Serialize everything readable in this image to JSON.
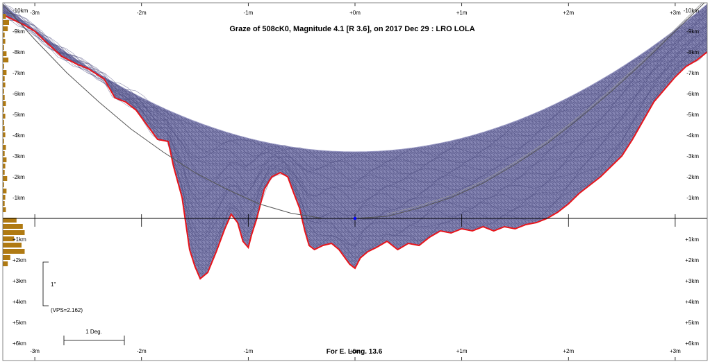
{
  "chart_data": {
    "type": "area",
    "title": "Graze of  508cK0,  Magnitude 4.1 [R 3.6],  on 2017 Dec 29  :  LRO LOLA",
    "footer": "For E. Long. 13.6",
    "x_ticks": [
      "-3m",
      "-2m",
      "-1m",
      "+0m",
      "+1m",
      "+2m",
      "+3m"
    ],
    "x_tick_values": [
      -3,
      -2,
      -1,
      0,
      1,
      2,
      3
    ],
    "xlim": [
      -3.3,
      3.3
    ],
    "ylim": [
      -10,
      6
    ],
    "y_ticks_left": [
      "-10km",
      "-9km",
      "-8km",
      "-7km",
      "-6km",
      "-5km",
      "-4km",
      "-3km",
      "-2km",
      "-1km",
      "+1km",
      "+2km",
      "+3km",
      "+4km",
      "+5km",
      "+6km"
    ],
    "y_ticks_right": [
      "-10km",
      "-9km",
      "-8km",
      "-7km",
      "-6km",
      "-5km",
      "-4km",
      "-3km",
      "-2km",
      "-1km",
      "+1km",
      "+2km",
      "+3km",
      "+4km",
      "+5km",
      "+6km"
    ],
    "y_tick_values": [
      -10,
      -9,
      -8,
      -7,
      -6,
      -5,
      -4,
      -3,
      -2,
      -1,
      1,
      2,
      3,
      4,
      5,
      6
    ],
    "scale_labels": {
      "arcsec": "1\"",
      "vps": "(VPS=2.162)",
      "degree": "1 Deg."
    },
    "limb_profile": {
      "x": [
        -3.3,
        -3.1,
        -3.0,
        -2.9,
        -2.75,
        -2.6,
        -2.5,
        -2.35,
        -2.25,
        -2.15,
        -2.05,
        -1.95,
        -1.85,
        -1.75,
        -1.7,
        -1.62,
        -1.55,
        -1.5,
        -1.45,
        -1.38,
        -1.3,
        -1.22,
        -1.16,
        -1.1,
        -1.05,
        -1.0,
        -0.97,
        -0.92,
        -0.85,
        -0.78,
        -0.7,
        -0.63,
        -0.58,
        -0.52,
        -0.47,
        -0.43,
        -0.38,
        -0.3,
        -0.22,
        -0.15,
        -0.05,
        0.0,
        0.05,
        0.12,
        0.2,
        0.3,
        0.4,
        0.5,
        0.6,
        0.7,
        0.8,
        0.9,
        1.0,
        1.1,
        1.2,
        1.3,
        1.4,
        1.5,
        1.6,
        1.7,
        1.8,
        1.9,
        2.0,
        2.1,
        2.2,
        2.3,
        2.4,
        2.5,
        2.6,
        2.7,
        2.8,
        2.9,
        3.0,
        3.1,
        3.2,
        3.3
      ],
      "y": [
        -9.8,
        -9.3,
        -9.0,
        -8.5,
        -7.8,
        -7.4,
        -7.2,
        -6.7,
        -5.8,
        -5.6,
        -5.2,
        -4.5,
        -3.8,
        -3.7,
        -2.5,
        -1.0,
        1.5,
        2.3,
        2.9,
        2.6,
        1.6,
        0.5,
        -0.2,
        0.2,
        1.1,
        1.4,
        0.8,
        0.0,
        -1.4,
        -2.0,
        -2.2,
        -2.0,
        -1.3,
        -0.5,
        0.6,
        1.3,
        1.5,
        1.3,
        1.2,
        1.5,
        2.2,
        2.4,
        1.9,
        1.6,
        1.4,
        1.1,
        1.5,
        1.2,
        1.3,
        0.9,
        0.6,
        0.7,
        0.5,
        0.6,
        0.4,
        0.6,
        0.4,
        0.5,
        0.3,
        0.2,
        0.0,
        -0.3,
        -0.7,
        -1.2,
        -1.6,
        -2.0,
        -2.5,
        -3.0,
        -3.8,
        -4.7,
        -5.6,
        -6.2,
        -6.8,
        -7.3,
        -7.6,
        -8.0
      ]
    },
    "observer_path": {
      "x": [
        -3.3,
        -3.0,
        -2.7,
        -2.4,
        -2.1,
        -1.8,
        -1.5,
        -1.2,
        -0.9,
        -0.6,
        -0.3,
        0.0,
        0.3,
        0.6,
        0.9,
        1.2,
        1.5,
        1.8,
        2.1,
        2.4,
        2.7,
        3.0,
        3.3
      ],
      "y": [
        -10.3,
        -8.6,
        -7.0,
        -5.6,
        -4.3,
        -3.2,
        -2.2,
        -1.4,
        -0.7,
        -0.25,
        0.0,
        0.0,
        -0.1,
        -0.5,
        -1.0,
        -1.7,
        -2.6,
        -3.6,
        -4.8,
        -6.1,
        -7.5,
        -9.0,
        -10.5
      ]
    },
    "center_point": {
      "x": 0,
      "y": 0
    },
    "left_histogram": {
      "y": [
        -9.7,
        -9.4,
        -9.1,
        -8.8,
        -8.5,
        -8.2,
        -7.9,
        -7.6,
        -7.3,
        -7.0,
        -6.7,
        -6.4,
        -6.1,
        -5.8,
        -5.5,
        -5.2,
        -4.9,
        -4.6,
        -4.3,
        -4.0,
        -3.7,
        -3.4,
        -3.1,
        -2.8,
        -2.5,
        -2.2,
        -1.9,
        -1.6,
        -1.3,
        -1.0,
        -0.7,
        -0.4,
        0.1,
        0.4,
        0.7,
        1.0,
        1.3,
        1.6,
        1.9,
        2.2
      ],
      "len": [
        5,
        10,
        8,
        3,
        4,
        2,
        6,
        9,
        2,
        6,
        3,
        4,
        2,
        3,
        5,
        2,
        4,
        2,
        3,
        4,
        2,
        5,
        3,
        6,
        4,
        3,
        7,
        2,
        6,
        4,
        3,
        5,
        22,
        32,
        35,
        18,
        30,
        35,
        12,
        8
      ]
    },
    "colors": {
      "background": "#ffffff",
      "mesh": "#6f6f9f",
      "limb": "#e8151b",
      "histogram": "#b07a12",
      "axis": "#000000",
      "observer_path": "#555555",
      "center_point": "#0000ff"
    }
  }
}
